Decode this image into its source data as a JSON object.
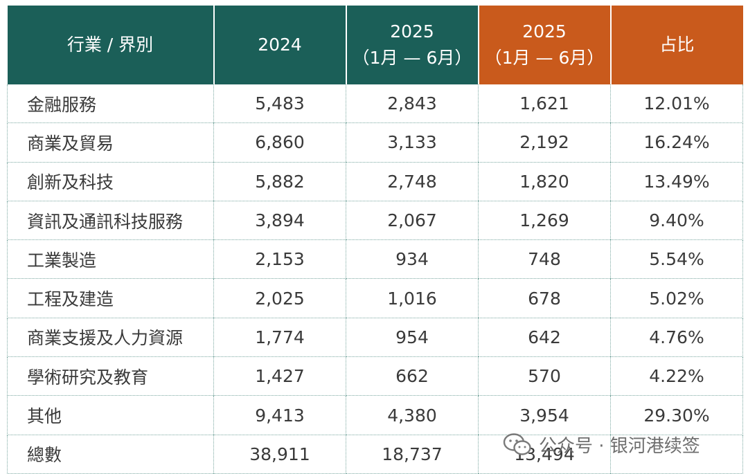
{
  "table": {
    "headers": [
      {
        "lines": [
          "行業 / 界別",
          ""
        ]
      },
      {
        "lines": [
          "2024",
          ""
        ]
      },
      {
        "lines": [
          "2025",
          "（1月 — 6月）"
        ]
      },
      {
        "lines": [
          "2025",
          "（1月 — 6月）"
        ]
      },
      {
        "lines": [
          "占比",
          ""
        ]
      }
    ],
    "header_colors": {
      "primary": "#1b5f58",
      "accent": "#c95a1c"
    },
    "rows": [
      [
        "金融服務",
        "5,483",
        "2,843",
        "1,621",
        "12.01%"
      ],
      [
        "商業及貿易",
        "6,860",
        "3,133",
        "2,192",
        "16.24%"
      ],
      [
        "創新及科技",
        "5,882",
        "2,748",
        "1,820",
        "13.49%"
      ],
      [
        "資訊及通訊科技服務",
        "3,894",
        "2,067",
        "1,269",
        "9.40%"
      ],
      [
        "工業製造",
        "2,153",
        "934",
        "748",
        "5.54%"
      ],
      [
        "工程及建造",
        "2,025",
        "1,016",
        "678",
        "5.02%"
      ],
      [
        "商業支援及人力資源",
        "1,774",
        "954",
        "642",
        "4.76%"
      ],
      [
        "學術研究及教育",
        "1,427",
        "662",
        "570",
        "4.22%"
      ],
      [
        "其他",
        "9,413",
        "4,380",
        "3,954",
        "29.30%"
      ],
      [
        "總數",
        "38,911",
        "18,737",
        "13,494",
        ""
      ]
    ]
  },
  "watermark": {
    "icon": "wechat-logo-icon",
    "text": "公众号 · 银河港续签"
  }
}
